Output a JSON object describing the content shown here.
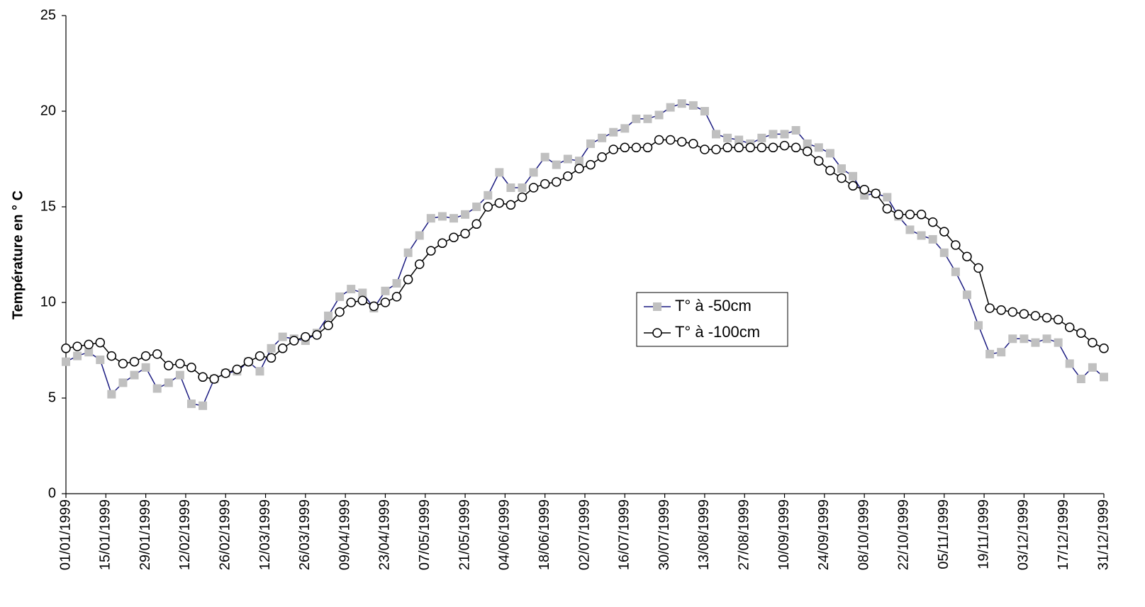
{
  "chart_data": {
    "type": "line",
    "ylabel": "Température en ° C",
    "xlim": [
      "01/01/1999",
      "31/12/1999"
    ],
    "xticks": [
      "01/01/1999",
      "15/01/1999",
      "29/01/1999",
      "12/02/1999",
      "26/02/1999",
      "12/03/1999",
      "26/03/1999",
      "09/04/1999",
      "23/04/1999",
      "07/05/1999",
      "21/05/1999",
      "04/06/1999",
      "18/06/1999",
      "02/07/1999",
      "16/07/1999",
      "30/07/1999",
      "13/08/1999",
      "27/08/1999",
      "10/09/1999",
      "24/09/1999",
      "08/10/1999",
      "22/10/1999",
      "05/11/1999",
      "19/11/1999",
      "03/12/1999",
      "17/12/1999",
      "31/12/1999"
    ],
    "ylim": [
      0,
      25
    ],
    "yticks": [
      0,
      5,
      10,
      15,
      20,
      25
    ],
    "grid": false,
    "legend": "center-right",
    "x": [
      "01/01/1999",
      "05/01/1999",
      "09/01/1999",
      "13/01/1999",
      "17/01/1999",
      "21/01/1999",
      "25/01/1999",
      "29/01/1999",
      "02/02/1999",
      "06/02/1999",
      "10/02/1999",
      "14/02/1999",
      "18/02/1999",
      "22/02/1999",
      "26/02/1999",
      "02/03/1999",
      "06/03/1999",
      "10/03/1999",
      "14/03/1999",
      "18/03/1999",
      "22/03/1999",
      "26/03/1999",
      "30/03/1999",
      "03/04/1999",
      "07/04/1999",
      "11/04/1999",
      "15/04/1999",
      "19/04/1999",
      "23/04/1999",
      "27/04/1999",
      "01/05/1999",
      "05/05/1999",
      "09/05/1999",
      "13/05/1999",
      "17/05/1999",
      "21/05/1999",
      "25/05/1999",
      "29/05/1999",
      "02/06/1999",
      "06/06/1999",
      "10/06/1999",
      "14/06/1999",
      "18/06/1999",
      "22/06/1999",
      "26/06/1999",
      "30/06/1999",
      "04/07/1999",
      "08/07/1999",
      "12/07/1999",
      "16/07/1999",
      "20/07/1999",
      "24/07/1999",
      "28/07/1999",
      "01/08/1999",
      "05/08/1999",
      "09/08/1999",
      "13/08/1999",
      "17/08/1999",
      "21/08/1999",
      "25/08/1999",
      "29/08/1999",
      "02/09/1999",
      "06/09/1999",
      "10/09/1999",
      "14/09/1999",
      "18/09/1999",
      "22/09/1999",
      "26/09/1999",
      "30/09/1999",
      "04/10/1999",
      "08/10/1999",
      "12/10/1999",
      "16/10/1999",
      "20/10/1999",
      "24/10/1999",
      "28/10/1999",
      "01/11/1999",
      "05/11/1999",
      "09/11/1999",
      "13/11/1999",
      "17/11/1999",
      "21/11/1999",
      "25/11/1999",
      "29/11/1999",
      "03/12/1999",
      "07/12/1999",
      "11/12/1999",
      "15/12/1999",
      "19/12/1999",
      "23/12/1999",
      "27/12/1999",
      "31/12/1999"
    ],
    "series": [
      {
        "name": "T° à -50cm",
        "color": "#1a1a80",
        "marker_color": "#c0c0c0",
        "marker": "square",
        "values": [
          6.9,
          7.2,
          7.4,
          7.0,
          5.2,
          5.8,
          6.2,
          6.6,
          5.5,
          5.8,
          6.2,
          4.7,
          4.6,
          6.0,
          6.3,
          6.4,
          6.9,
          6.4,
          7.6,
          8.2,
          8.1,
          8.0,
          8.4,
          9.3,
          10.3,
          10.7,
          10.5,
          9.7,
          10.6,
          11.0,
          12.6,
          13.5,
          14.4,
          14.5,
          14.4,
          14.6,
          15.0,
          15.6,
          16.8,
          16.0,
          16.0,
          16.8,
          17.6,
          17.2,
          17.5,
          17.4,
          18.3,
          18.6,
          18.9,
          19.1,
          19.6,
          19.6,
          19.8,
          20.2,
          20.4,
          20.3,
          20.0,
          18.8,
          18.6,
          18.5,
          18.3,
          18.6,
          18.8,
          18.8,
          19.0,
          18.3,
          18.1,
          17.8,
          17.0,
          16.6,
          15.6,
          15.7,
          15.5,
          14.5,
          13.8,
          13.5,
          13.3,
          12.6,
          11.6,
          10.4,
          8.8,
          7.3,
          7.4,
          8.1,
          8.1,
          7.9,
          8.1,
          7.9,
          6.8,
          6.0,
          6.6,
          6.1
        ]
      },
      {
        "name": "T° à -100cm",
        "color": "#000000",
        "marker_color": "#ffffff",
        "marker": "circle",
        "values": [
          7.6,
          7.7,
          7.8,
          7.9,
          7.2,
          6.8,
          6.9,
          7.2,
          7.3,
          6.7,
          6.8,
          6.6,
          6.1,
          6.0,
          6.3,
          6.5,
          6.9,
          7.2,
          7.1,
          7.6,
          8.0,
          8.2,
          8.3,
          8.8,
          9.5,
          10.0,
          10.1,
          9.8,
          10.0,
          10.3,
          11.2,
          12.0,
          12.7,
          13.1,
          13.4,
          13.6,
          14.1,
          15.0,
          15.2,
          15.1,
          15.5,
          16.0,
          16.2,
          16.3,
          16.6,
          17.0,
          17.2,
          17.6,
          18.0,
          18.1,
          18.1,
          18.1,
          18.5,
          18.5,
          18.4,
          18.3,
          18.0,
          18.0,
          18.1,
          18.1,
          18.1,
          18.1,
          18.1,
          18.2,
          18.1,
          17.9,
          17.4,
          16.9,
          16.5,
          16.1,
          15.9,
          15.7,
          14.9,
          14.6,
          14.6,
          14.6,
          14.2,
          13.7,
          13.0,
          12.4,
          11.8,
          9.7,
          9.6,
          9.5,
          9.4,
          9.3,
          9.2,
          9.1,
          8.7,
          8.4,
          7.9,
          7.6
        ]
      }
    ]
  }
}
